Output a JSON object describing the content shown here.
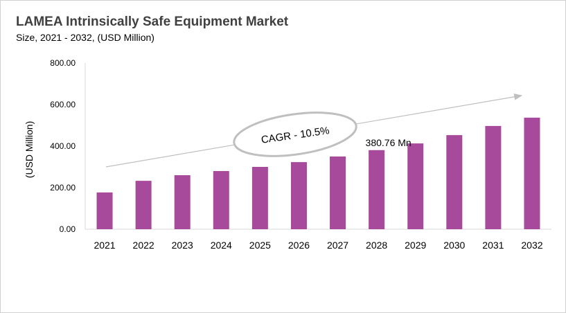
{
  "chart_data": {
    "type": "bar",
    "title": "LAMEA Intrinsically Safe Equipment Market",
    "subtitle": "Size, 2021 - 2032, (USD Million)",
    "ylabel": "(USD Million)",
    "xlabel": "",
    "ylim": [
      0,
      800
    ],
    "yticks": [
      "0.00",
      "200.00",
      "400.00",
      "600.00",
      "800.00"
    ],
    "grid": false,
    "categories": [
      "2021",
      "2022",
      "2023",
      "2024",
      "2025",
      "2026",
      "2027",
      "2028",
      "2029",
      "2030",
      "2031",
      "2032"
    ],
    "values": [
      177,
      233,
      260,
      280,
      300,
      323,
      350,
      380.76,
      413,
      453,
      497,
      537
    ],
    "bar_color": "#a84a9c",
    "annotations": {
      "data_label": "380.76 Mn",
      "cagr": "CAGR - 10.5%"
    }
  }
}
